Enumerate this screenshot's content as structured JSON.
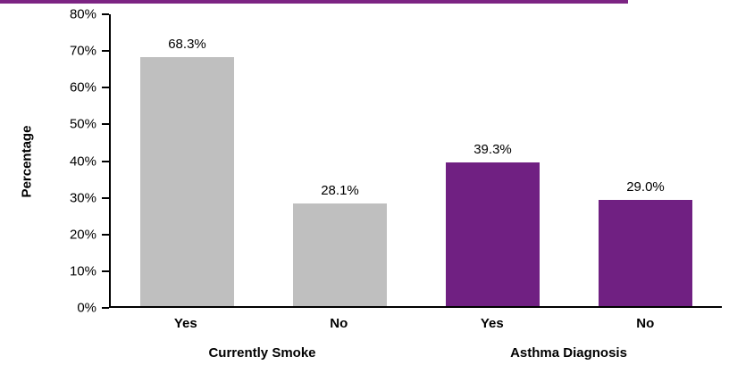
{
  "chart_data": {
    "type": "bar",
    "title": "",
    "xlabel": "",
    "ylabel": "Percentage",
    "ylim": [
      0,
      80
    ],
    "grid": false,
    "legend_position": "none",
    "yticks": [
      {
        "value": 0,
        "label": "0%"
      },
      {
        "value": 10,
        "label": "10%"
      },
      {
        "value": 20,
        "label": "20%"
      },
      {
        "value": 30,
        "label": "30%"
      },
      {
        "value": 40,
        "label": "40%"
      },
      {
        "value": 50,
        "label": "50%"
      },
      {
        "value": 60,
        "label": "60%"
      },
      {
        "value": 70,
        "label": "70%"
      },
      {
        "value": 80,
        "label": "80%"
      }
    ],
    "groups": [
      {
        "label": "Currently Smoke",
        "color": "#BFBFBF",
        "bars": [
          {
            "label": "Yes",
            "value": 68.3,
            "display": "68.3%"
          },
          {
            "label": "No",
            "value": 28.1,
            "display": "28.1%"
          }
        ]
      },
      {
        "label": "Asthma Diagnosis",
        "color": "#702082",
        "bars": [
          {
            "label": "Yes",
            "value": 39.3,
            "display": "39.3%"
          },
          {
            "label": "No",
            "value": 29.0,
            "display": "29.0%"
          }
        ]
      }
    ]
  },
  "colors": {
    "accent_line": "#7C2483",
    "axis": "#000000"
  }
}
